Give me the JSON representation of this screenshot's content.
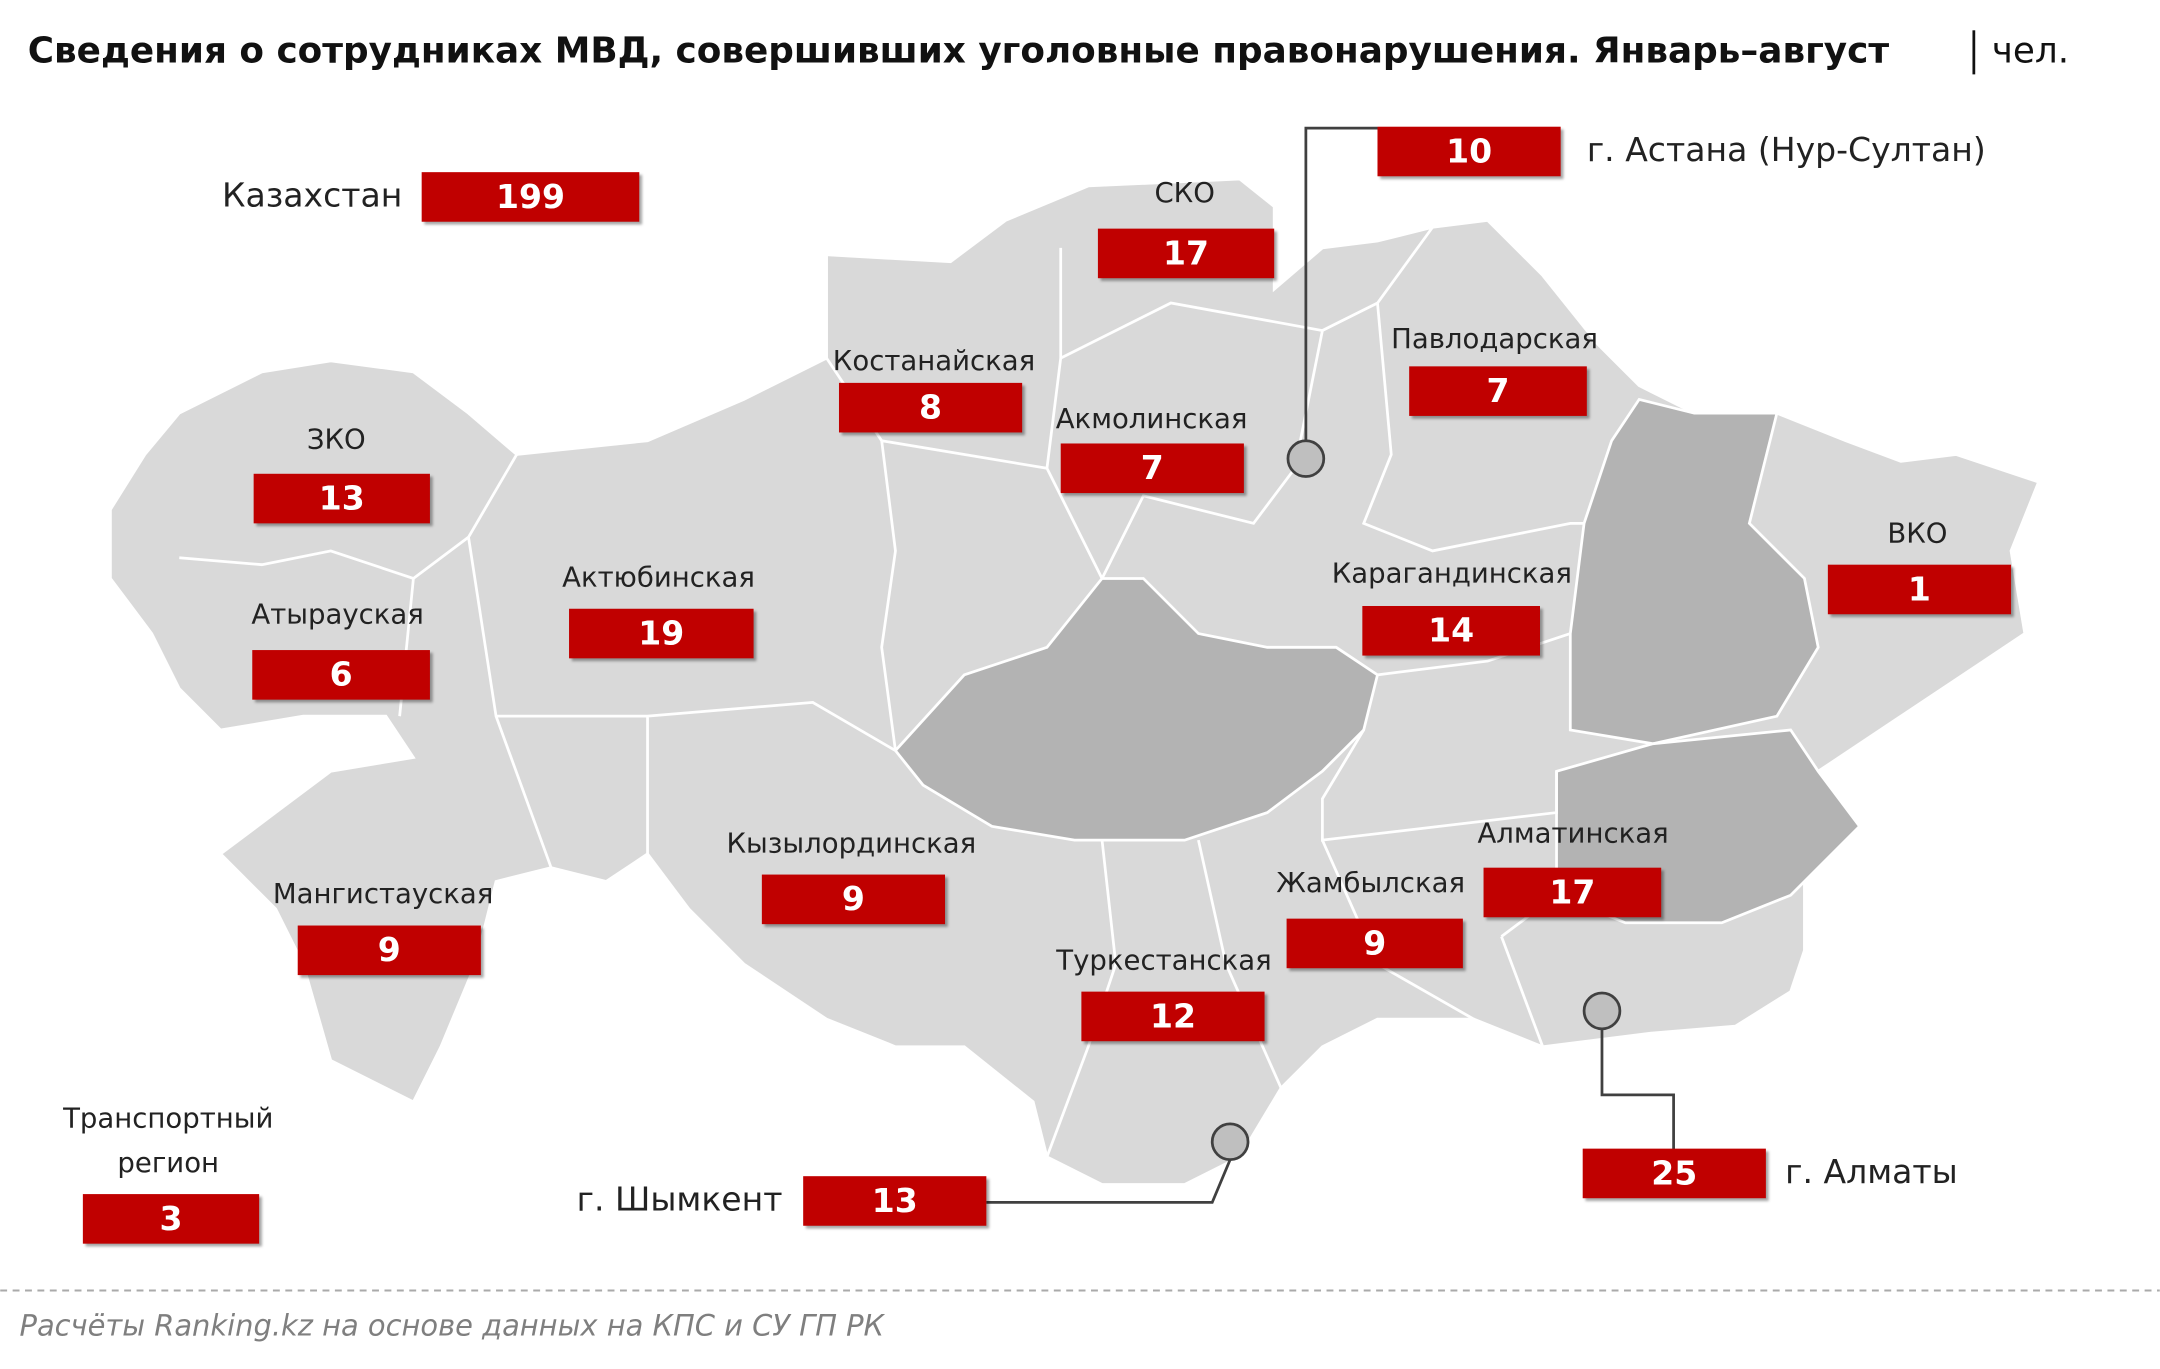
{
  "header": {
    "title": "Сведения о сотрудниках МВД, совершивших уголовные правонарушения. Январь–август",
    "unit": "чел."
  },
  "total": {
    "label": "Казахстан",
    "value": 199
  },
  "regions": [
    {
      "name": "СКО",
      "value": 17
    },
    {
      "name": "Костанайская",
      "value": 8
    },
    {
      "name": "Павлодарская",
      "value": 7
    },
    {
      "name": "ЗКО",
      "value": 13
    },
    {
      "name": "Акмолинская",
      "value": 7
    },
    {
      "name": "ВКО",
      "value": 1
    },
    {
      "name": "Актюбинская",
      "value": 19
    },
    {
      "name": "Карагандинская",
      "value": 14
    },
    {
      "name": "Атырауская",
      "value": 6
    },
    {
      "name": "Кызылординская",
      "value": 9
    },
    {
      "name": "Алматинская",
      "value": 17
    },
    {
      "name": "Мангистауская",
      "value": 9
    },
    {
      "name": "Жамбылская",
      "value": 9
    },
    {
      "name": "Туркестанская",
      "value": 12
    }
  ],
  "cities": [
    {
      "name": "г. Астана (Нур-Султан)",
      "value": 10
    },
    {
      "name": "г. Алматы",
      "value": 25
    },
    {
      "name": "г. Шымкент",
      "value": 13
    }
  ],
  "transport": {
    "label_lines": [
      "Транспортный",
      "регион"
    ],
    "value": 3
  },
  "source": "Расчёты Ranking.kz на основе данных на КПС и СУ ГП РК"
}
